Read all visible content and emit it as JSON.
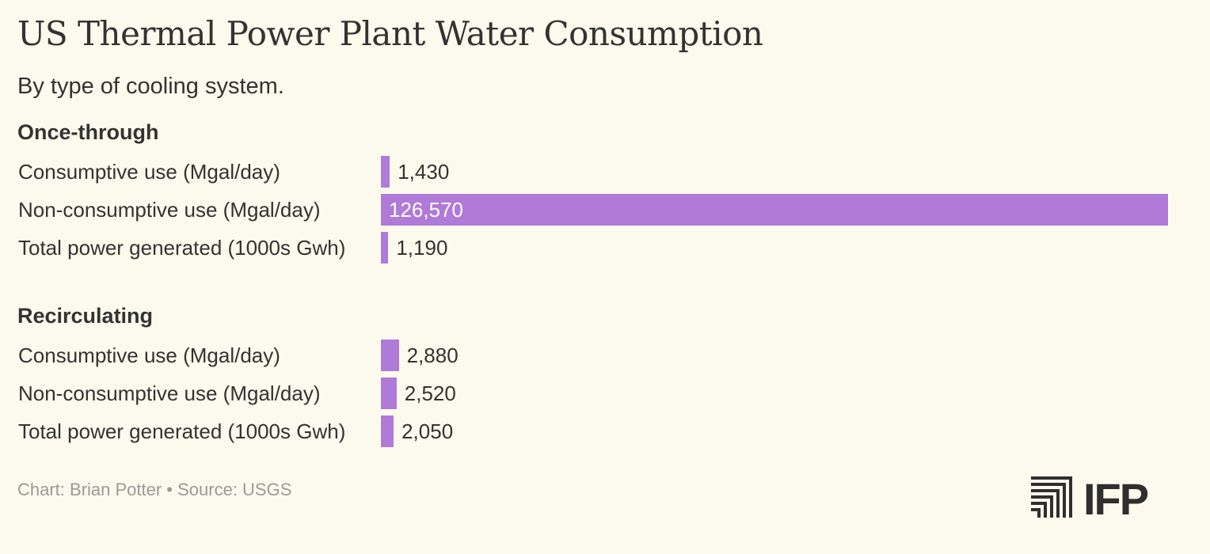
{
  "colors": {
    "background": "#fcfaec",
    "bar": "#b07ad8",
    "text": "#333333",
    "footer": "#9a9a9a"
  },
  "chart_data": {
    "type": "bar",
    "orientation": "horizontal",
    "title": "US Thermal Power Plant Water Consumption",
    "subtitle": "By type of cooling system.",
    "xlim": [
      0,
      126570
    ],
    "grid": false,
    "groups": [
      {
        "name": "Once-through",
        "categories": [
          "Consumptive use (Mgal/day)",
          "Non-consumptive use (Mgal/day)",
          "Total power generated (1000s Gwh)"
        ],
        "values": [
          1430,
          126570,
          1190
        ],
        "value_labels": [
          "1,430",
          "126,570",
          "1,190"
        ]
      },
      {
        "name": "Recirculating",
        "categories": [
          "Consumptive use (Mgal/day)",
          "Non-consumptive use (Mgal/day)",
          "Total power generated (1000s Gwh)"
        ],
        "values": [
          2880,
          2520,
          2050
        ],
        "value_labels": [
          "2,880",
          "2,520",
          "2,050"
        ]
      }
    ]
  },
  "footer": {
    "text": "Chart: Brian Potter • Source: USGS"
  },
  "logo": {
    "text": "IFP",
    "icon": "ifp-stripes-icon"
  }
}
